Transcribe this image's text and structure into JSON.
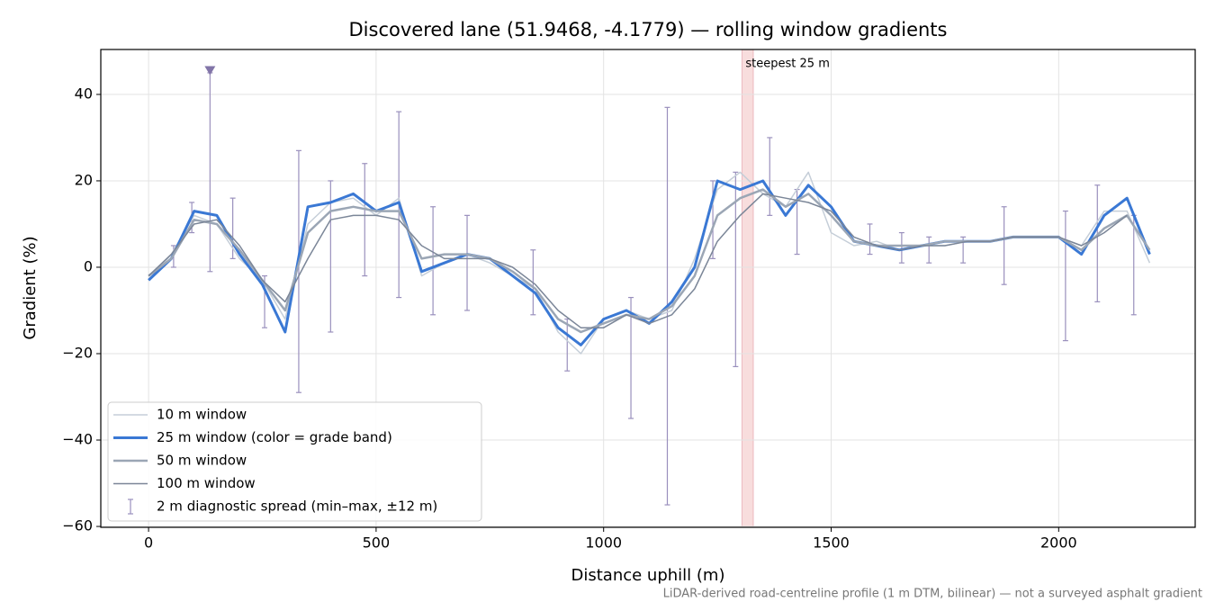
{
  "chart_data": {
    "type": "line",
    "title": "Discovered lane (51.9468, -4.1779) — rolling window gradients",
    "x_label": "Distance uphill (m)",
    "y_label": "Gradient (%)",
    "footnote": "LiDAR-derived road-centreline profile (1 m DTM, bilinear) — not a surveyed asphalt gradient",
    "xlim": [
      -105,
      2300
    ],
    "ylim": [
      -60.2,
      50.4
    ],
    "xticks": [
      0,
      500,
      1000,
      1500,
      2000
    ],
    "yticks": [
      {
        "value": -60,
        "label": "−60"
      },
      {
        "value": -40,
        "label": "−40"
      },
      {
        "value": -20,
        "label": "−20"
      },
      0,
      20,
      40
    ],
    "grid": true,
    "legend": "lower left",
    "x": [
      0,
      50,
      100,
      150,
      200,
      250,
      300,
      350,
      400,
      450,
      500,
      550,
      600,
      650,
      700,
      750,
      800,
      850,
      900,
      950,
      1000,
      1050,
      1100,
      1150,
      1200,
      1250,
      1300,
      1350,
      1400,
      1450,
      1500,
      1550,
      1600,
      1650,
      1700,
      1750,
      1800,
      1850,
      1900,
      1950,
      2000,
      2050,
      2100,
      2150,
      2200
    ],
    "series": [
      {
        "name": "10 m window",
        "color": "#c5ced8",
        "width": 1.5,
        "values": [
          -3,
          3,
          12,
          10,
          2,
          -3,
          -12,
          10,
          15,
          16,
          12,
          16,
          -2,
          1,
          3,
          1,
          -2,
          -5,
          -15,
          -20,
          -12,
          -10,
          -12,
          -10,
          2,
          18,
          22,
          17,
          14,
          22,
          8,
          5,
          6,
          4,
          5,
          5,
          6,
          6,
          7,
          7,
          7,
          5,
          13,
          13,
          1
        ]
      },
      {
        "name": "25 m window (color = grade band)",
        "color": "#3a78d4",
        "width": 3,
        "values": [
          -3,
          2,
          13,
          12,
          3,
          -4,
          -15,
          14,
          15,
          17,
          13,
          15,
          -1,
          1,
          3,
          2,
          -2,
          -6,
          -14,
          -18,
          -12,
          -10,
          -13,
          -8,
          0,
          20,
          18,
          20,
          12,
          19,
          14,
          6,
          5,
          4,
          5,
          6,
          6,
          6,
          7,
          7,
          7,
          3,
          12,
          16,
          3
        ]
      },
      {
        "name": "50 m window",
        "color": "#9ba6b5",
        "width": 2.5,
        "values": [
          -2,
          2,
          11,
          10,
          4,
          -3,
          -10,
          8,
          13,
          14,
          13,
          13,
          2,
          3,
          3,
          2,
          -1,
          -5,
          -12,
          -15,
          -13,
          -11,
          -12,
          -9,
          -2,
          12,
          16,
          18,
          14,
          17,
          12,
          6,
          5,
          5,
          5,
          6,
          6,
          6,
          7,
          7,
          7,
          4,
          9,
          12,
          4
        ]
      },
      {
        "name": "100 m window",
        "color": "#7b8698",
        "width": 1.5,
        "values": [
          -2,
          3,
          10,
          11,
          5,
          -3,
          -8,
          2,
          11,
          12,
          12,
          11,
          5,
          2,
          2,
          2,
          0,
          -4,
          -10,
          -14,
          -14,
          -11,
          -13,
          -11,
          -5,
          6,
          12,
          17,
          16,
          15,
          13,
          7,
          5,
          4,
          5,
          5,
          6,
          6,
          7,
          7,
          7,
          5,
          8,
          12,
          null
        ]
      }
    ],
    "spread": {
      "name": "2 m diagnostic spread (min–max, ±12 m)",
      "color": "#9a90bd",
      "x": [
        55,
        95,
        135,
        185,
        255,
        330,
        400,
        475,
        550,
        625,
        700,
        845,
        920,
        1060,
        1140,
        1240,
        1290,
        1365,
        1425,
        1585,
        1655,
        1715,
        1790,
        1880,
        2015,
        2085,
        2165
      ],
      "low": [
        0,
        8,
        -1,
        2,
        -14,
        -29,
        -15,
        -2,
        -7,
        -11,
        -10,
        -11,
        -24,
        -35,
        -55,
        2,
        -23,
        12,
        3,
        3,
        1,
        1,
        1,
        -4,
        -17,
        -8,
        -11
      ],
      "high": [
        5,
        15,
        45,
        16,
        -2,
        27,
        20,
        24,
        36,
        14,
        12,
        4,
        -12,
        -7,
        37,
        20,
        22,
        30,
        18,
        10,
        8,
        7,
        7,
        14,
        13,
        19,
        12
      ]
    },
    "peak_marker": {
      "x": 135,
      "y": 45.5,
      "color": "#8275a8"
    },
    "steepest": {
      "x0": 1304,
      "x1": 1329,
      "label": "steepest 25 m",
      "color": "#f4c7c7",
      "label_color": "#c0203a"
    }
  }
}
